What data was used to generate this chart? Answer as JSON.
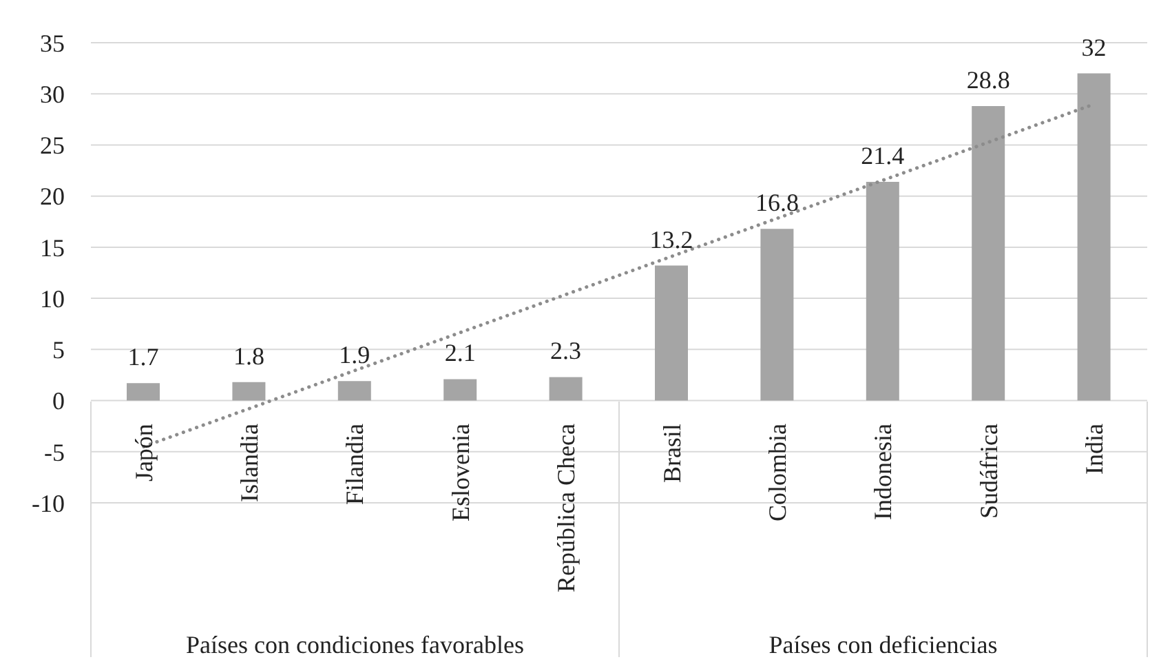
{
  "chart_data": {
    "type": "bar",
    "categories": [
      "Japón",
      "Islandia",
      "Filandia",
      "Eslovenia",
      "República Checa",
      "Brasil",
      "Colombia",
      "Indonesia",
      "Sudáfrica",
      "India"
    ],
    "series": [
      {
        "color": "#a5a5a5",
        "values": [
          1.7,
          1.8,
          1.9,
          2.1,
          2.3,
          13.2,
          16.8,
          21.4,
          28.8,
          32
        ],
        "value_labels": [
          "1.7",
          "1.8",
          "1.9",
          "2.1",
          "2.3",
          "13.2",
          "16.8",
          "21.4",
          "28.8",
          "32"
        ]
      },
      {
        "type": "line",
        "color": "#8c8c8c",
        "x": [
          "Japón",
          "India"
        ],
        "values": [
          -4.5,
          29
        ],
        "line_style": "dotted"
      }
    ],
    "ylim": [
      -10,
      35
    ],
    "yticks": [
      -10,
      -5,
      0,
      5,
      10,
      15,
      20,
      25,
      30,
      35
    ],
    "grid": "y",
    "annotations": [
      "Países con condiciones favorables",
      "Países con deficiencias"
    ]
  }
}
